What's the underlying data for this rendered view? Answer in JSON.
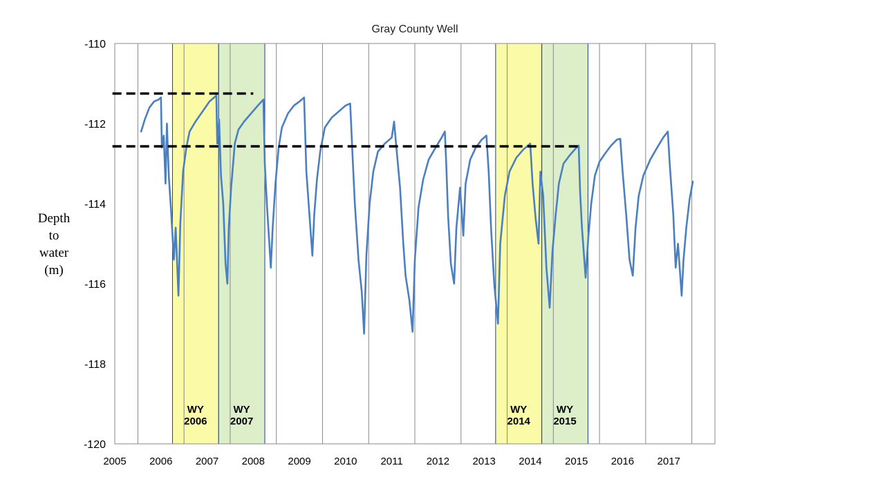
{
  "chart_data": {
    "type": "line",
    "title": "Gray County Well",
    "ylabel_lines": [
      "Depth",
      "to",
      "water",
      "(m)"
    ],
    "xlabel": "",
    "xlim": [
      2005,
      2018
    ],
    "ylim": [
      -120,
      -110
    ],
    "yticks": [
      -110,
      -112,
      -114,
      -116,
      -118,
      -120
    ],
    "xtick_labels": [
      "2005",
      "2006",
      "2007",
      "2008",
      "2009",
      "2010",
      "2011",
      "2012",
      "2013",
      "2014",
      "2015",
      "2016",
      "2017"
    ],
    "grid": "vertical",
    "colors": {
      "line": "#4a7fc1",
      "yellow_band": "#fbfaa6",
      "green_band": "#dcefc8",
      "band_border": "#1f3f8f",
      "gridline": "#888888",
      "reference_line": "#000000"
    },
    "highlight_bands": [
      {
        "x0": 2006.25,
        "x1": 2007.25,
        "color": "yellow",
        "label_top": "WY",
        "label_bottom": "2006"
      },
      {
        "x0": 2007.25,
        "x1": 2008.25,
        "color": "green",
        "label_top": "WY",
        "label_bottom": "2007"
      },
      {
        "x0": 2013.25,
        "x1": 2014.25,
        "color": "yellow",
        "label_top": "WY",
        "label_bottom": "2014"
      },
      {
        "x0": 2014.25,
        "x1": 2015.25,
        "color": "green",
        "label_top": "WY",
        "label_bottom": "2015"
      }
    ],
    "reference_lines": [
      {
        "y": -111.25,
        "x0": 2004.95,
        "x1": 2008.0
      },
      {
        "y": -112.57,
        "x0": 2004.95,
        "x1": 2015.05
      }
    ],
    "series": [
      {
        "points": [
          [
            2005.57,
            -112.2
          ],
          [
            2005.65,
            -111.9
          ],
          [
            2005.75,
            -111.6
          ],
          [
            2005.85,
            -111.45
          ],
          [
            2005.95,
            -111.4
          ],
          [
            2006.0,
            -111.35
          ],
          [
            2006.02,
            -112.6
          ],
          [
            2006.06,
            -112.3
          ],
          [
            2006.1,
            -113.5
          ],
          [
            2006.13,
            -112.0
          ],
          [
            2006.17,
            -113.3
          ],
          [
            2006.22,
            -114.2
          ],
          [
            2006.28,
            -115.4
          ],
          [
            2006.32,
            -114.6
          ],
          [
            2006.38,
            -116.3
          ],
          [
            2006.42,
            -114.5
          ],
          [
            2006.48,
            -113.2
          ],
          [
            2006.55,
            -112.6
          ],
          [
            2006.62,
            -112.2
          ],
          [
            2006.75,
            -111.95
          ],
          [
            2006.9,
            -111.7
          ],
          [
            2007.05,
            -111.45
          ],
          [
            2007.2,
            -111.3
          ],
          [
            2007.22,
            -112.5
          ],
          [
            2007.26,
            -111.9
          ],
          [
            2007.3,
            -113.3
          ],
          [
            2007.35,
            -114.0
          ],
          [
            2007.4,
            -115.5
          ],
          [
            2007.44,
            -116.0
          ],
          [
            2007.47,
            -114.6
          ],
          [
            2007.52,
            -113.6
          ],
          [
            2007.6,
            -112.5
          ],
          [
            2007.68,
            -112.15
          ],
          [
            2007.8,
            -111.95
          ],
          [
            2007.95,
            -111.75
          ],
          [
            2008.1,
            -111.55
          ],
          [
            2008.22,
            -111.4
          ],
          [
            2008.25,
            -113.0
          ],
          [
            2008.3,
            -114.1
          ],
          [
            2008.38,
            -115.6
          ],
          [
            2008.42,
            -114.6
          ],
          [
            2008.48,
            -113.5
          ],
          [
            2008.55,
            -112.6
          ],
          [
            2008.62,
            -112.1
          ],
          [
            2008.75,
            -111.75
          ],
          [
            2008.88,
            -111.55
          ],
          [
            2009.0,
            -111.45
          ],
          [
            2009.1,
            -111.35
          ],
          [
            2009.15,
            -113.2
          ],
          [
            2009.2,
            -114.0
          ],
          [
            2009.28,
            -115.3
          ],
          [
            2009.32,
            -114.3
          ],
          [
            2009.38,
            -113.4
          ],
          [
            2009.45,
            -112.7
          ],
          [
            2009.55,
            -112.1
          ],
          [
            2009.7,
            -111.85
          ],
          [
            2009.85,
            -111.7
          ],
          [
            2010.0,
            -111.55
          ],
          [
            2010.1,
            -111.5
          ],
          [
            2010.15,
            -112.8
          ],
          [
            2010.2,
            -114.0
          ],
          [
            2010.28,
            -115.4
          ],
          [
            2010.35,
            -116.2
          ],
          [
            2010.4,
            -117.25
          ],
          [
            2010.45,
            -115.3
          ],
          [
            2010.52,
            -114.0
          ],
          [
            2010.6,
            -113.2
          ],
          [
            2010.7,
            -112.7
          ],
          [
            2010.85,
            -112.5
          ],
          [
            2011.0,
            -112.35
          ],
          [
            2011.05,
            -111.95
          ],
          [
            2011.1,
            -112.6
          ],
          [
            2011.18,
            -113.6
          ],
          [
            2011.25,
            -115.0
          ],
          [
            2011.3,
            -115.8
          ],
          [
            2011.38,
            -116.4
          ],
          [
            2011.45,
            -117.2
          ],
          [
            2011.5,
            -115.4
          ],
          [
            2011.58,
            -114.1
          ],
          [
            2011.68,
            -113.4
          ],
          [
            2011.8,
            -112.9
          ],
          [
            2011.95,
            -112.6
          ],
          [
            2012.08,
            -112.35
          ],
          [
            2012.15,
            -112.2
          ],
          [
            2012.18,
            -113.0
          ],
          [
            2012.22,
            -114.3
          ],
          [
            2012.28,
            -115.5
          ],
          [
            2012.35,
            -116.0
          ],
          [
            2012.4,
            -114.6
          ],
          [
            2012.48,
            -113.6
          ],
          [
            2012.55,
            -114.8
          ],
          [
            2012.6,
            -113.5
          ],
          [
            2012.7,
            -112.9
          ],
          [
            2012.82,
            -112.6
          ],
          [
            2012.95,
            -112.4
          ],
          [
            2013.05,
            -112.3
          ],
          [
            2013.1,
            -113.2
          ],
          [
            2013.15,
            -114.6
          ],
          [
            2013.22,
            -116.0
          ],
          [
            2013.3,
            -117.0
          ],
          [
            2013.35,
            -115.0
          ],
          [
            2013.45,
            -113.8
          ],
          [
            2013.55,
            -113.2
          ],
          [
            2013.7,
            -112.85
          ],
          [
            2013.85,
            -112.65
          ],
          [
            2014.0,
            -112.5
          ],
          [
            2014.05,
            -113.5
          ],
          [
            2014.12,
            -114.4
          ],
          [
            2014.18,
            -115.0
          ],
          [
            2014.22,
            -113.2
          ],
          [
            2014.28,
            -113.8
          ],
          [
            2014.35,
            -115.6
          ],
          [
            2014.42,
            -116.6
          ],
          [
            2014.48,
            -115.2
          ],
          [
            2014.55,
            -114.3
          ],
          [
            2014.62,
            -113.5
          ],
          [
            2014.72,
            -113.0
          ],
          [
            2014.85,
            -112.8
          ],
          [
            2015.0,
            -112.6
          ],
          [
            2015.05,
            -112.55
          ],
          [
            2015.08,
            -113.7
          ],
          [
            2015.12,
            -114.6
          ],
          [
            2015.2,
            -115.85
          ],
          [
            2015.26,
            -114.8
          ],
          [
            2015.32,
            -114.0
          ],
          [
            2015.4,
            -113.3
          ],
          [
            2015.5,
            -112.95
          ],
          [
            2015.62,
            -112.75
          ],
          [
            2015.75,
            -112.55
          ],
          [
            2015.88,
            -112.4
          ],
          [
            2015.95,
            -112.38
          ],
          [
            2016.0,
            -113.2
          ],
          [
            2016.08,
            -114.3
          ],
          [
            2016.15,
            -115.4
          ],
          [
            2016.22,
            -115.8
          ],
          [
            2016.28,
            -114.6
          ],
          [
            2016.35,
            -113.8
          ],
          [
            2016.45,
            -113.3
          ],
          [
            2016.6,
            -112.9
          ],
          [
            2016.75,
            -112.6
          ],
          [
            2016.88,
            -112.35
          ],
          [
            2016.98,
            -112.2
          ],
          [
            2017.02,
            -113.0
          ],
          [
            2017.1,
            -114.3
          ],
          [
            2017.15,
            -115.6
          ],
          [
            2017.2,
            -115.0
          ],
          [
            2017.28,
            -116.3
          ],
          [
            2017.32,
            -115.4
          ],
          [
            2017.38,
            -114.6
          ],
          [
            2017.45,
            -113.9
          ],
          [
            2017.52,
            -113.45
          ]
        ]
      }
    ]
  }
}
